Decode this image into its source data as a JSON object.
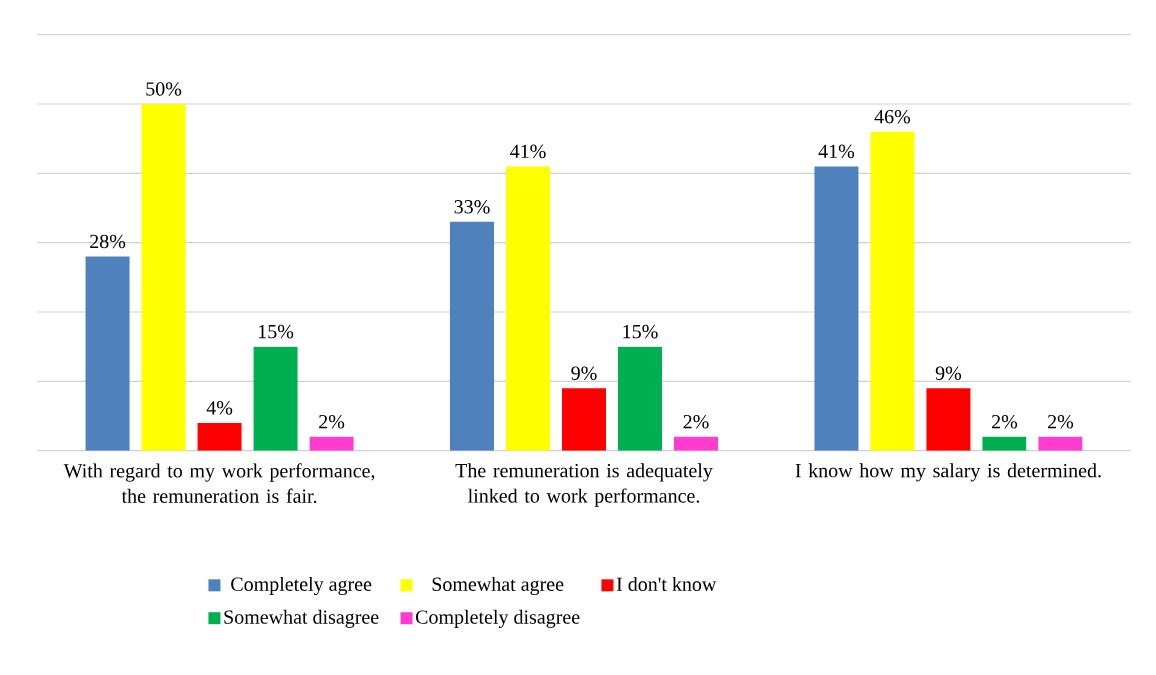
{
  "chart_data": {
    "type": "bar",
    "categories": [
      "With regard to my work performance, the remuneration is fair.",
      "The remuneration is adequately linked to work performance.",
      "I know how my salary is determined."
    ],
    "series": [
      {
        "name": "Completely agree",
        "color": "#4f81bd",
        "values": [
          28,
          33,
          41
        ],
        "value_labels": [
          "28%",
          "33%",
          "41%"
        ]
      },
      {
        "name": "Somewhat agree",
        "color": "#ffff00",
        "values": [
          50,
          41,
          46
        ],
        "value_labels": [
          "50%",
          "41%",
          "46%"
        ]
      },
      {
        "name": "I don't know",
        "color": "#ff0000",
        "values": [
          4,
          9,
          9
        ],
        "value_labels": [
          "4%",
          "9%",
          "9%"
        ]
      },
      {
        "name": "Somewhat disagree",
        "color": "#00b050",
        "values": [
          15,
          15,
          2
        ],
        "value_labels": [
          "15%",
          "15%",
          "2%"
        ]
      },
      {
        "name": "Completely disagree",
        "color": "#ff3ccf",
        "values": [
          2,
          2,
          2
        ],
        "value_labels": [
          "2%",
          "2%",
          "2%"
        ]
      }
    ],
    "ylim": [
      0,
      60
    ],
    "yticks": [
      {
        "value": 0,
        "label": null
      },
      {
        "value": 10,
        "label": null
      },
      {
        "value": 20,
        "label": null
      },
      {
        "value": 30,
        "label": null
      },
      {
        "value": 40,
        "label": null
      },
      {
        "value": 50,
        "label": null
      },
      {
        "value": 60,
        "label": null
      }
    ],
    "tick_labels": "x",
    "grid": "y",
    "legend": "bottom"
  }
}
